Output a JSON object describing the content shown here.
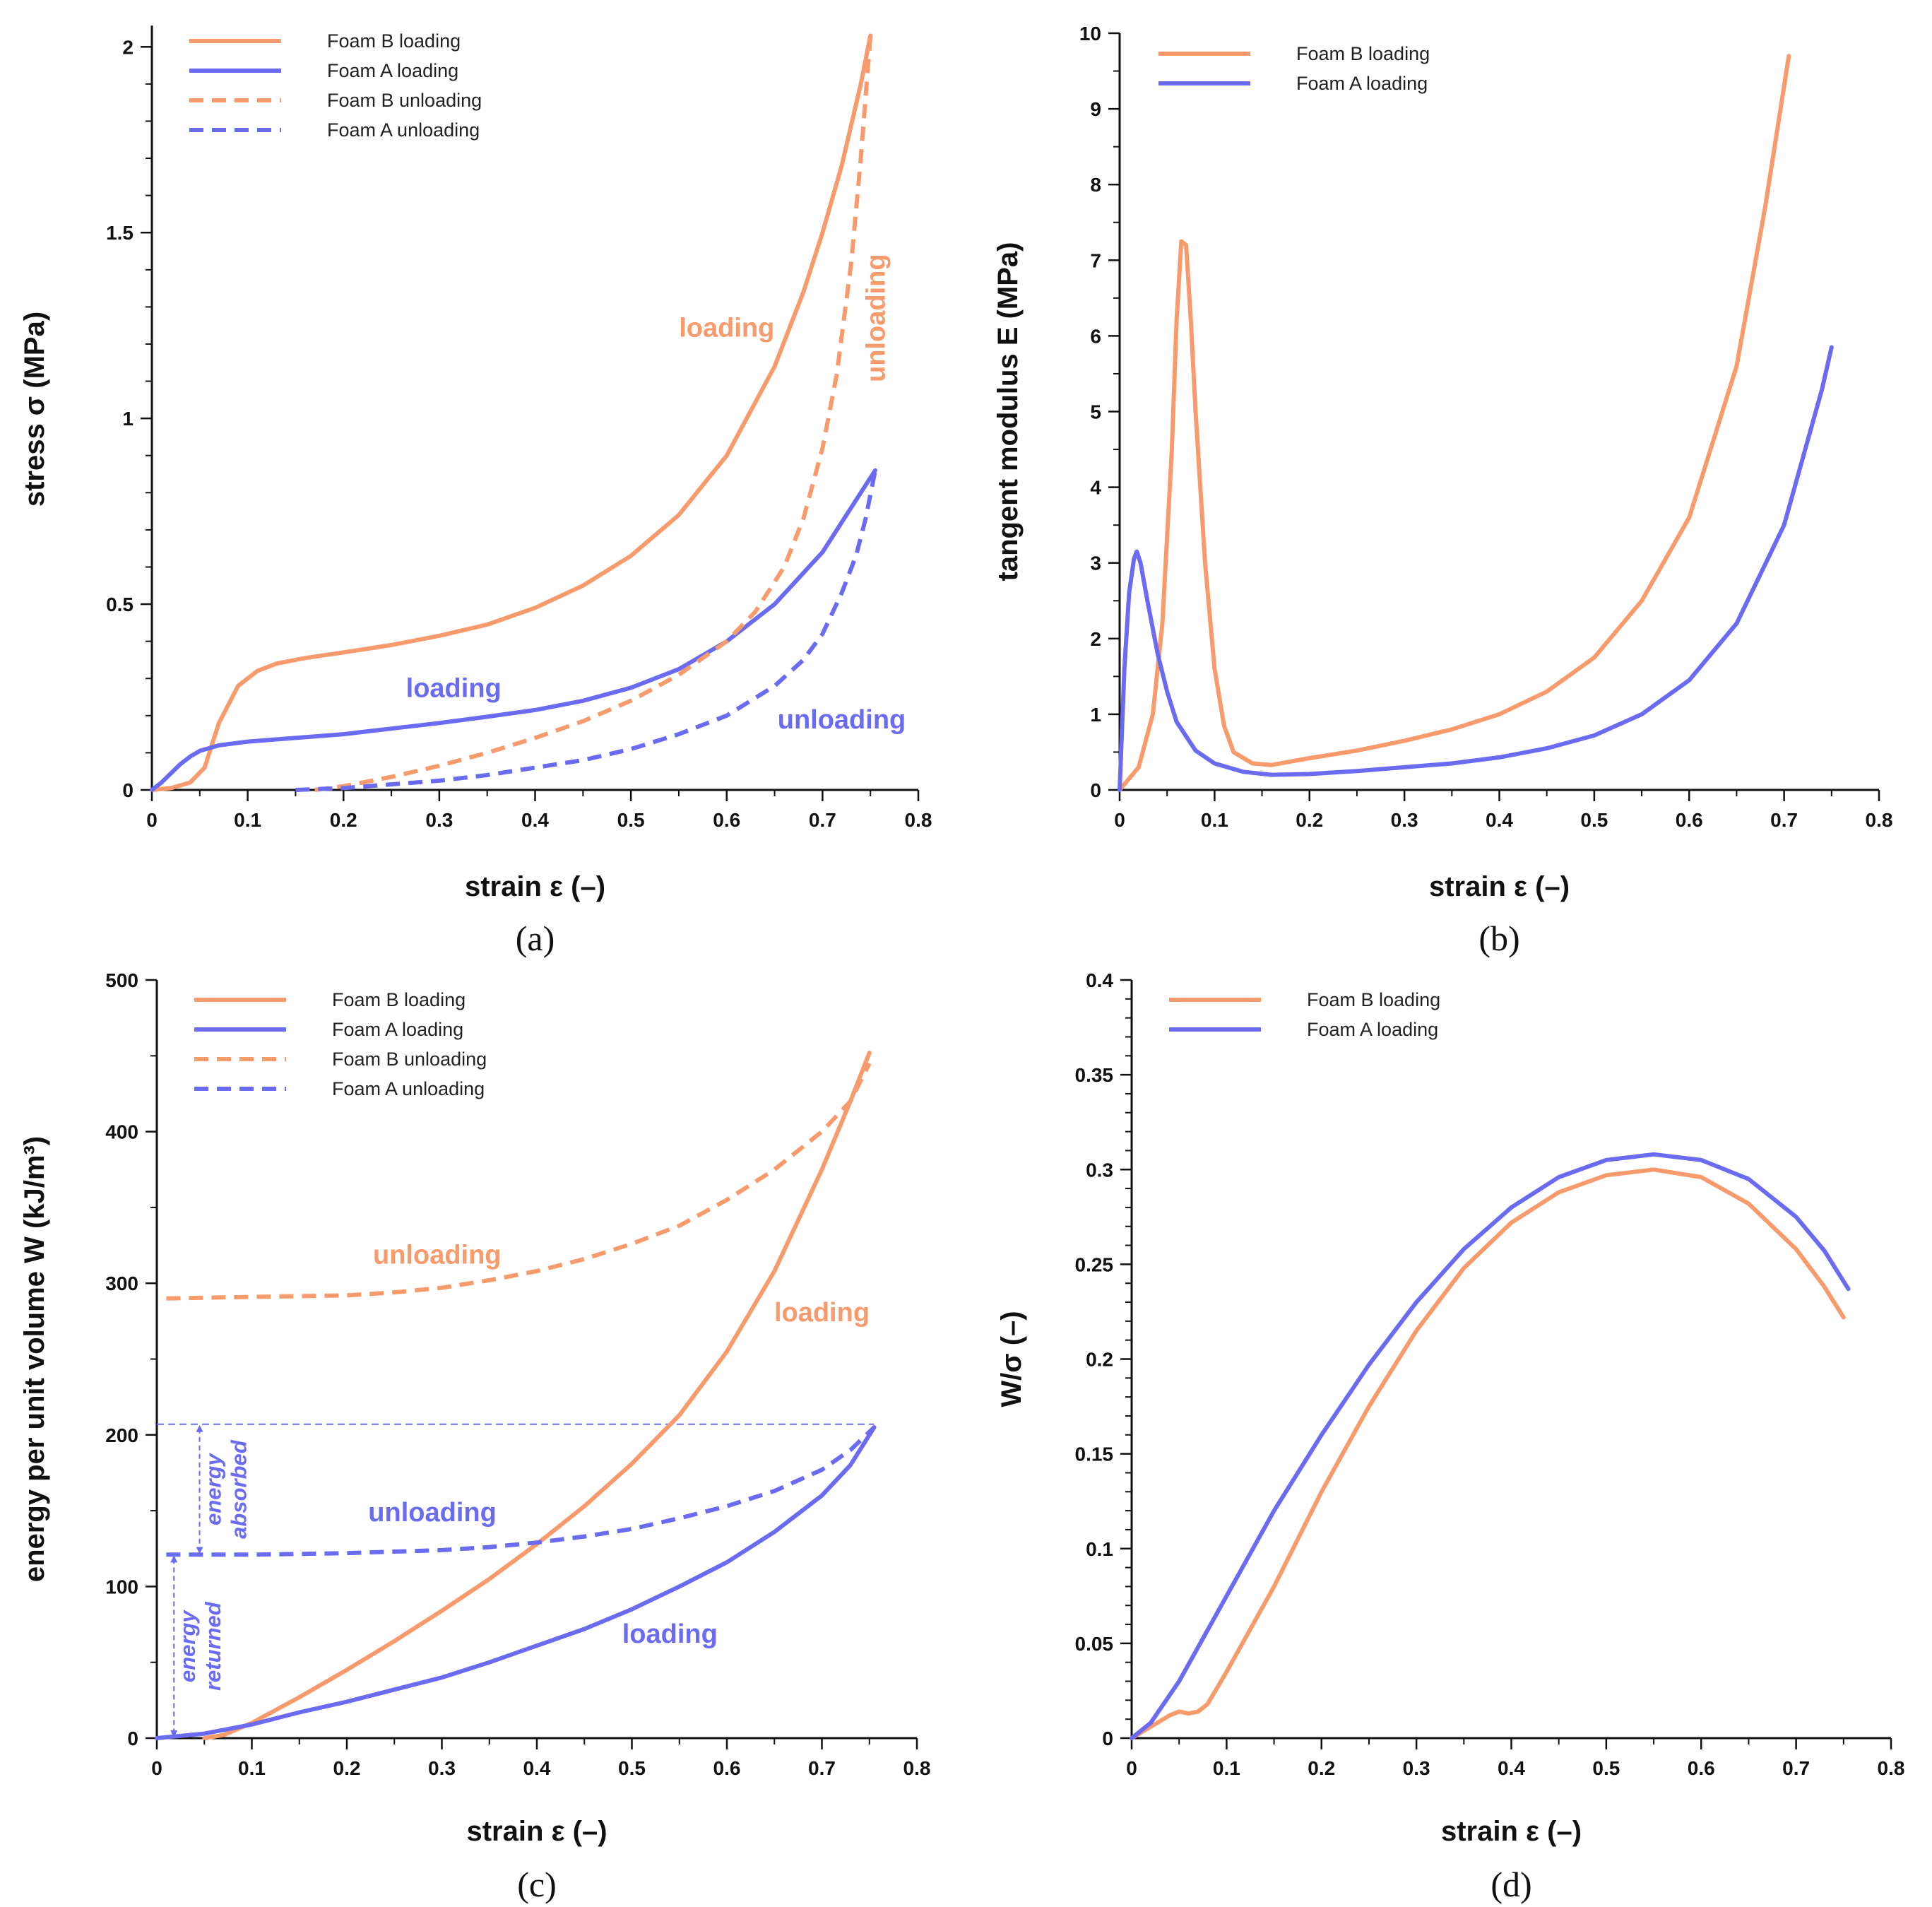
{
  "colors": {
    "foam_b": "#f79a6c",
    "foam_a": "#6b6bf2",
    "axis": "#111111"
  },
  "chart_data": [
    {
      "panel": "a",
      "panel_label": "(a)",
      "type": "line",
      "xlabel": "strain ε (–)",
      "ylabel": "stress σ (MPa)",
      "xlim": [
        0,
        0.8
      ],
      "ylim": [
        0,
        2.05
      ],
      "xticks": [
        0,
        0.1,
        0.2,
        0.3,
        0.4,
        0.5,
        0.6,
        0.7,
        0.8
      ],
      "xtick_labels": [
        "0",
        "0.1",
        "0.2",
        "0.3",
        "0.4",
        "0.5",
        "0.6",
        "0.7",
        "0.8"
      ],
      "yticks": [
        0,
        0.5,
        1,
        1.5,
        2
      ],
      "ytick_labels": [
        "0",
        "0.5",
        "1",
        "1.5",
        "2"
      ],
      "legend_position": "top-left",
      "series": [
        {
          "name": "Foam B loading",
          "color": "foam_b",
          "dash": false,
          "x": [
            0,
            0.02,
            0.04,
            0.055,
            0.07,
            0.09,
            0.11,
            0.13,
            0.16,
            0.2,
            0.25,
            0.3,
            0.35,
            0.4,
            0.45,
            0.5,
            0.55,
            0.6,
            0.65,
            0.68,
            0.7,
            0.72,
            0.74,
            0.75
          ],
          "y": [
            0,
            0.005,
            0.02,
            0.06,
            0.18,
            0.28,
            0.32,
            0.34,
            0.355,
            0.37,
            0.39,
            0.415,
            0.445,
            0.49,
            0.55,
            0.63,
            0.74,
            0.9,
            1.14,
            1.34,
            1.5,
            1.68,
            1.9,
            2.03
          ]
        },
        {
          "name": "Foam A loading",
          "color": "foam_a",
          "dash": false,
          "x": [
            0,
            0.01,
            0.02,
            0.03,
            0.04,
            0.05,
            0.07,
            0.1,
            0.15,
            0.2,
            0.25,
            0.3,
            0.35,
            0.4,
            0.45,
            0.5,
            0.55,
            0.6,
            0.65,
            0.7,
            0.72,
            0.74,
            0.755
          ],
          "y": [
            0,
            0.02,
            0.045,
            0.07,
            0.09,
            0.105,
            0.12,
            0.13,
            0.14,
            0.15,
            0.165,
            0.18,
            0.197,
            0.215,
            0.24,
            0.275,
            0.325,
            0.4,
            0.5,
            0.64,
            0.72,
            0.8,
            0.86
          ]
        },
        {
          "name": "Foam B unloading",
          "color": "foam_b",
          "dash": true,
          "x": [
            0.17,
            0.2,
            0.25,
            0.3,
            0.35,
            0.4,
            0.45,
            0.5,
            0.55,
            0.6,
            0.63,
            0.66,
            0.68,
            0.7,
            0.715,
            0.73,
            0.74,
            0.75
          ],
          "y": [
            0,
            0.01,
            0.035,
            0.065,
            0.1,
            0.14,
            0.185,
            0.24,
            0.31,
            0.4,
            0.48,
            0.6,
            0.73,
            0.92,
            1.12,
            1.42,
            1.7,
            2.03
          ]
        },
        {
          "name": "Foam A unloading",
          "color": "foam_a",
          "dash": true,
          "x": [
            0.15,
            0.2,
            0.25,
            0.3,
            0.35,
            0.4,
            0.45,
            0.5,
            0.55,
            0.6,
            0.65,
            0.68,
            0.7,
            0.72,
            0.735,
            0.745,
            0.755
          ],
          "y": [
            0,
            0.005,
            0.015,
            0.025,
            0.04,
            0.06,
            0.08,
            0.11,
            0.15,
            0.2,
            0.28,
            0.35,
            0.42,
            0.53,
            0.63,
            0.73,
            0.86
          ]
        }
      ],
      "annotations": [
        {
          "text": "loading",
          "color": "foam_b",
          "x": 0.6,
          "y": 1.22,
          "rotate": 0
        },
        {
          "text": "unloading",
          "color": "foam_b",
          "x": 0.765,
          "y": 1.27,
          "rotate": -90
        },
        {
          "text": "loading",
          "color": "foam_a",
          "x": 0.315,
          "y": 0.25,
          "rotate": 0
        },
        {
          "text": "unloading",
          "color": "foam_a",
          "x": 0.72,
          "y": 0.165,
          "rotate": 0
        }
      ]
    },
    {
      "panel": "b",
      "panel_label": "(b)",
      "type": "line",
      "xlabel": "strain ε (–)",
      "ylabel": "tangent modulus E (MPa)",
      "xlim": [
        0,
        0.8
      ],
      "ylim": [
        0,
        10
      ],
      "xticks": [
        0,
        0.1,
        0.2,
        0.3,
        0.4,
        0.5,
        0.6,
        0.7,
        0.8
      ],
      "xtick_labels": [
        "0",
        "0.1",
        "0.2",
        "0.3",
        "0.4",
        "0.5",
        "0.6",
        "0.7",
        "0.8"
      ],
      "yticks": [
        0,
        1,
        2,
        3,
        4,
        5,
        6,
        7,
        8,
        9,
        10
      ],
      "ytick_labels": [
        "0",
        "1",
        "2",
        "3",
        "4",
        "5",
        "6",
        "7",
        "8",
        "9",
        "10"
      ],
      "legend_position": "top-left",
      "series": [
        {
          "name": "Foam B loading",
          "color": "foam_b",
          "dash": false,
          "x": [
            0,
            0.02,
            0.035,
            0.045,
            0.055,
            0.06,
            0.065,
            0.07,
            0.075,
            0.08,
            0.09,
            0.1,
            0.11,
            0.12,
            0.14,
            0.16,
            0.2,
            0.25,
            0.3,
            0.35,
            0.4,
            0.45,
            0.5,
            0.55,
            0.6,
            0.65,
            0.68,
            0.7,
            0.705
          ],
          "y": [
            0,
            0.3,
            1.0,
            2.2,
            4.5,
            6.2,
            7.25,
            7.2,
            6.2,
            5.0,
            3.0,
            1.6,
            0.85,
            0.5,
            0.35,
            0.33,
            0.42,
            0.52,
            0.65,
            0.8,
            1.0,
            1.3,
            1.75,
            2.5,
            3.6,
            5.6,
            7.7,
            9.3,
            9.7
          ]
        },
        {
          "name": "Foam A loading",
          "color": "foam_a",
          "dash": false,
          "x": [
            0,
            0.005,
            0.01,
            0.015,
            0.018,
            0.022,
            0.03,
            0.04,
            0.05,
            0.06,
            0.08,
            0.1,
            0.13,
            0.16,
            0.2,
            0.25,
            0.3,
            0.35,
            0.4,
            0.45,
            0.5,
            0.55,
            0.6,
            0.65,
            0.7,
            0.72,
            0.74,
            0.75
          ],
          "y": [
            0,
            1.6,
            2.6,
            3.05,
            3.15,
            3.0,
            2.45,
            1.8,
            1.3,
            0.9,
            0.52,
            0.35,
            0.24,
            0.2,
            0.21,
            0.25,
            0.3,
            0.35,
            0.43,
            0.55,
            0.72,
            1.0,
            1.45,
            2.2,
            3.5,
            4.4,
            5.3,
            5.85
          ]
        }
      ],
      "annotations": []
    },
    {
      "panel": "c",
      "panel_label": "(c)",
      "type": "line",
      "xlabel": "strain ε (–)",
      "ylabel": "energy per unit volume W (kJ/m³)",
      "xlim": [
        0,
        0.8
      ],
      "ylim": [
        0,
        500
      ],
      "xticks": [
        0,
        0.1,
        0.2,
        0.3,
        0.4,
        0.5,
        0.6,
        0.7,
        0.8
      ],
      "xtick_labels": [
        "0",
        "0.1",
        "0.2",
        "0.3",
        "0.4",
        "0.5",
        "0.6",
        "0.7",
        "0.8"
      ],
      "yticks": [
        0,
        100,
        200,
        300,
        400,
        500
      ],
      "ytick_labels": [
        "0",
        "100",
        "200",
        "300",
        "400",
        "500"
      ],
      "legend_position": "top-left",
      "series": [
        {
          "name": "Foam B loading",
          "color": "foam_b",
          "dash": false,
          "x": [
            0.05,
            0.07,
            0.1,
            0.15,
            0.2,
            0.25,
            0.3,
            0.35,
            0.4,
            0.45,
            0.5,
            0.55,
            0.6,
            0.65,
            0.7,
            0.73,
            0.75
          ],
          "y": [
            0,
            2,
            10,
            27,
            45,
            64,
            84,
            105,
            128,
            153,
            181,
            213,
            255,
            308,
            375,
            420,
            452
          ]
        },
        {
          "name": "Foam A loading",
          "color": "foam_a",
          "dash": false,
          "x": [
            0,
            0.05,
            0.1,
            0.15,
            0.2,
            0.25,
            0.3,
            0.35,
            0.4,
            0.45,
            0.5,
            0.55,
            0.6,
            0.65,
            0.7,
            0.73,
            0.755
          ],
          "y": [
            0,
            3,
            9,
            17,
            24,
            32,
            40,
            50,
            61,
            72,
            85,
            100,
            116,
            136,
            160,
            180,
            205
          ]
        },
        {
          "name": "Foam B unloading",
          "color": "foam_b",
          "dash": true,
          "x": [
            0.01,
            0.1,
            0.2,
            0.25,
            0.3,
            0.35,
            0.4,
            0.45,
            0.5,
            0.55,
            0.6,
            0.65,
            0.7,
            0.73,
            0.75
          ],
          "y": [
            290,
            291,
            292,
            294,
            297,
            302,
            308,
            316,
            326,
            338,
            355,
            375,
            400,
            420,
            445
          ]
        },
        {
          "name": "Foam A unloading",
          "color": "foam_a",
          "dash": true,
          "x": [
            0.01,
            0.1,
            0.2,
            0.3,
            0.35,
            0.4,
            0.45,
            0.5,
            0.55,
            0.6,
            0.65,
            0.7,
            0.73,
            0.755
          ],
          "y": [
            121,
            121,
            122,
            124,
            126,
            129,
            133,
            138,
            145,
            153,
            163,
            177,
            190,
            205
          ]
        }
      ],
      "annotations": [
        {
          "text": "unloading",
          "color": "foam_b",
          "x": 0.295,
          "y": 313,
          "rotate": 0
        },
        {
          "text": "loading",
          "color": "foam_b",
          "x": 0.7,
          "y": 275,
          "rotate": 0
        },
        {
          "text": "unloading",
          "color": "foam_a",
          "x": 0.29,
          "y": 143,
          "rotate": 0
        },
        {
          "text": "loading",
          "color": "foam_a",
          "x": 0.54,
          "y": 63,
          "rotate": 0
        }
      ],
      "reference": {
        "line_level": 207,
        "line_x": [
          0,
          0.755
        ],
        "absorbed_arrow": {
          "x": 0.045,
          "from": 207,
          "to": 121
        },
        "returned_arrow": {
          "x": 0.018,
          "from": 121,
          "to": 0
        },
        "label_absorbed": [
          "energy",
          "absorbed"
        ],
        "label_returned": [
          "energy",
          "returned"
        ]
      }
    },
    {
      "panel": "d",
      "panel_label": "(d)",
      "type": "line",
      "xlabel": "strain ε (–)",
      "ylabel": "W/σ (–)",
      "xlim": [
        0,
        0.8
      ],
      "ylim": [
        0,
        0.4
      ],
      "xticks": [
        0,
        0.1,
        0.2,
        0.3,
        0.4,
        0.5,
        0.6,
        0.7,
        0.8
      ],
      "xtick_labels": [
        "0",
        "0.1",
        "0.2",
        "0.3",
        "0.4",
        "0.5",
        "0.6",
        "0.7",
        "0.8"
      ],
      "yticks": [
        0,
        0.05,
        0.1,
        0.15,
        0.2,
        0.25,
        0.3,
        0.35,
        0.4
      ],
      "ytick_labels": [
        "0",
        "0.05",
        "0.1",
        "0.15",
        "0.2",
        "0.25",
        "0.3",
        "0.35",
        "0.4"
      ],
      "legend_position": "top-left",
      "series": [
        {
          "name": "Foam B loading",
          "color": "foam_b",
          "dash": false,
          "x": [
            0,
            0.02,
            0.04,
            0.05,
            0.06,
            0.07,
            0.08,
            0.1,
            0.15,
            0.2,
            0.25,
            0.3,
            0.35,
            0.4,
            0.45,
            0.5,
            0.55,
            0.6,
            0.65,
            0.7,
            0.73,
            0.75
          ],
          "y": [
            0,
            0.006,
            0.012,
            0.014,
            0.013,
            0.014,
            0.018,
            0.035,
            0.08,
            0.13,
            0.175,
            0.215,
            0.248,
            0.272,
            0.288,
            0.297,
            0.3,
            0.296,
            0.282,
            0.258,
            0.238,
            0.222
          ]
        },
        {
          "name": "Foam A loading",
          "color": "foam_a",
          "dash": false,
          "x": [
            0,
            0.02,
            0.05,
            0.1,
            0.15,
            0.2,
            0.25,
            0.3,
            0.35,
            0.4,
            0.45,
            0.5,
            0.55,
            0.6,
            0.65,
            0.7,
            0.73,
            0.755
          ],
          "y": [
            0,
            0.008,
            0.03,
            0.075,
            0.12,
            0.16,
            0.197,
            0.23,
            0.258,
            0.28,
            0.296,
            0.305,
            0.308,
            0.305,
            0.295,
            0.275,
            0.257,
            0.237
          ]
        }
      ],
      "annotations": []
    }
  ]
}
